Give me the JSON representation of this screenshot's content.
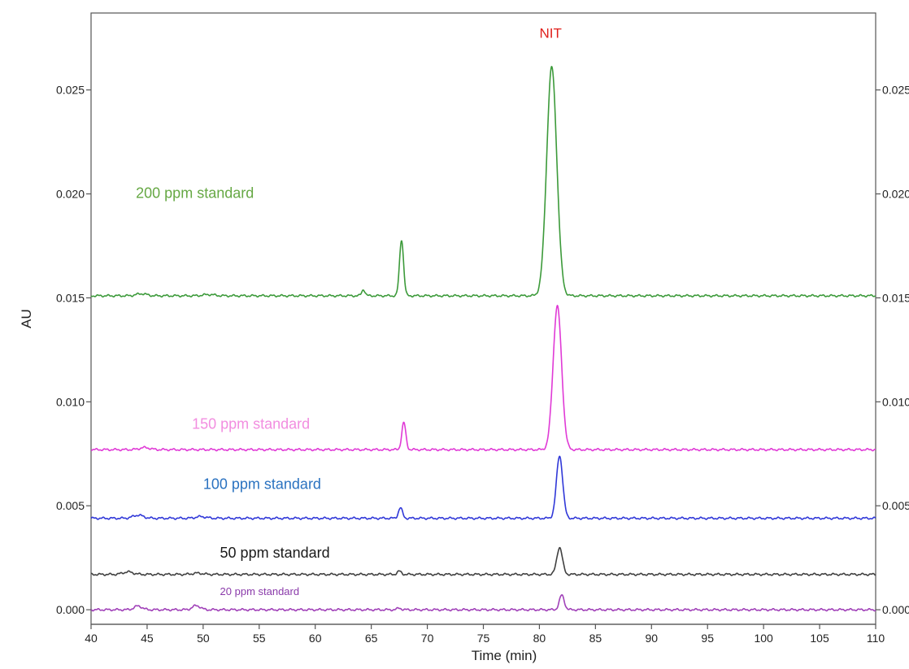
{
  "chart_data": {
    "type": "line",
    "title": "",
    "xlabel": "Time (min)",
    "ylabel": "AU",
    "xlim": [
      40,
      110
    ],
    "ylim": [
      -0.0007,
      0.0287
    ],
    "x_ticks": [
      40,
      45,
      50,
      55,
      60,
      65,
      70,
      75,
      80,
      85,
      90,
      95,
      100,
      105,
      110
    ],
    "y_ticks": [
      {
        "value": 0.0,
        "label": "0.000"
      },
      {
        "value": 0.005,
        "label": "0.005"
      },
      {
        "value": 0.01,
        "label": "0.010"
      },
      {
        "value": 0.015,
        "label": "0.015"
      },
      {
        "value": 0.02,
        "label": "0.020"
      },
      {
        "value": 0.025,
        "label": "0.025"
      }
    ],
    "grid": false,
    "annotations": [
      {
        "text": "NIT",
        "x": 81,
        "y": 0.0275,
        "color": "#e0201c"
      }
    ],
    "series": [
      {
        "name": "200 ppm standard",
        "color": "#3c9a3a",
        "label_color": "#66a844",
        "label_x": 44,
        "label_y": 0.0198,
        "baseline": 0.0151,
        "peaks": [
          {
            "x": 44.5,
            "height": 0.0001,
            "width": 0.45
          },
          {
            "x": 50.5,
            "height": 6e-05,
            "width": 0.5
          },
          {
            "x": 64.3,
            "height": 0.0003,
            "width": 0.15
          },
          {
            "x": 67.7,
            "height": 0.0027,
            "width": 0.18
          },
          {
            "x": 81.1,
            "height": 0.011,
            "width": 0.45
          }
        ]
      },
      {
        "name": "150 ppm standard",
        "color": "#e03ad6",
        "label_color": "#f28ee0",
        "label_x": 49,
        "label_y": 0.0087,
        "baseline": 0.0077,
        "peaks": [
          {
            "x": 44.8,
            "height": 0.0001,
            "width": 0.45
          },
          {
            "x": 67.9,
            "height": 0.0013,
            "width": 0.18
          },
          {
            "x": 81.6,
            "height": 0.0069,
            "width": 0.38
          }
        ]
      },
      {
        "name": "100 ppm standard",
        "color": "#3038d8",
        "label_color": "#2a72c0",
        "label_x": 50,
        "label_y": 0.0058,
        "baseline": 0.0044,
        "peaks": [
          {
            "x": 44.2,
            "height": 0.00015,
            "width": 0.45
          },
          {
            "x": 49.8,
            "height": 8e-05,
            "width": 0.45
          },
          {
            "x": 67.6,
            "height": 0.0005,
            "width": 0.18
          },
          {
            "x": 81.8,
            "height": 0.003,
            "width": 0.28
          }
        ]
      },
      {
        "name": "50 ppm standard",
        "color": "#404040",
        "label_color": "#1a1a1a",
        "label_x": 51.5,
        "label_y": 0.0025,
        "baseline": 0.0017,
        "peaks": [
          {
            "x": 43.3,
            "height": 0.00012,
            "width": 0.45
          },
          {
            "x": 49.5,
            "height": 6e-05,
            "width": 0.45
          },
          {
            "x": 67.5,
            "height": 0.00015,
            "width": 0.18
          },
          {
            "x": 81.8,
            "height": 0.0013,
            "width": 0.25
          }
        ]
      },
      {
        "name": "20 ppm standard",
        "color": "#a040b8",
        "label_color": "#8a3aaa",
        "label_x": 51.5,
        "label_y": 0.0007,
        "baseline": 0.0,
        "peaks": [
          {
            "x": 44.2,
            "height": 0.00018,
            "width": 0.35
          },
          {
            "x": 49.4,
            "height": 0.0002,
            "width": 0.35
          },
          {
            "x": 67.5,
            "height": 8e-05,
            "width": 0.18
          },
          {
            "x": 82.0,
            "height": 0.0007,
            "width": 0.22
          }
        ]
      }
    ]
  }
}
